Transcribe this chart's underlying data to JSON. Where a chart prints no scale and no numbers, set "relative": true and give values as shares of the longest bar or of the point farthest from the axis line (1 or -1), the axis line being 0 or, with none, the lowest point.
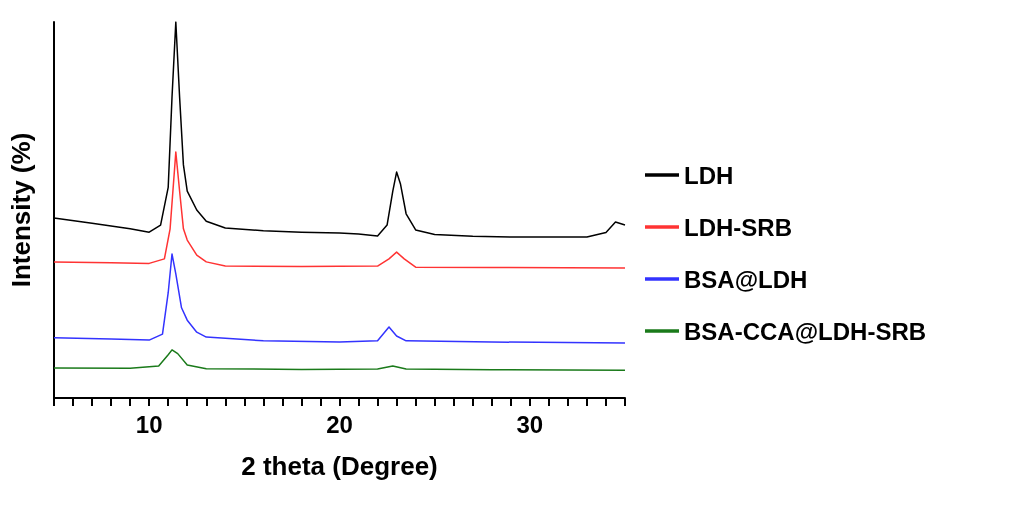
{
  "chart_data": {
    "type": "line",
    "relative": true,
    "xlabel": "2 theta (Degree)",
    "ylabel": "Intensity (%)",
    "xlim": [
      5,
      35
    ],
    "xticks": [
      {
        "value": 5,
        "label": null
      },
      {
        "value": 6,
        "label": null
      },
      {
        "value": 7,
        "label": null
      },
      {
        "value": 8,
        "label": null
      },
      {
        "value": 9,
        "label": null
      },
      10,
      {
        "value": 11,
        "label": null
      },
      {
        "value": 12,
        "label": null
      },
      {
        "value": 13,
        "label": null
      },
      {
        "value": 14,
        "label": null
      },
      {
        "value": 15,
        "label": null
      },
      {
        "value": 16,
        "label": null
      },
      {
        "value": 17,
        "label": null
      },
      {
        "value": 18,
        "label": null
      },
      {
        "value": 19,
        "label": null
      },
      20,
      {
        "value": 21,
        "label": null
      },
      {
        "value": 22,
        "label": null
      },
      {
        "value": 23,
        "label": null
      },
      {
        "value": 24,
        "label": null
      },
      {
        "value": 25,
        "label": null
      },
      {
        "value": 26,
        "label": null
      },
      {
        "value": 27,
        "label": null
      },
      {
        "value": 28,
        "label": null
      },
      {
        "value": 29,
        "label": null
      },
      30,
      {
        "value": 31,
        "label": null
      },
      {
        "value": 32,
        "label": null
      },
      {
        "value": 33,
        "label": null
      },
      {
        "value": 34,
        "label": null
      },
      {
        "value": 35,
        "label": null
      }
    ],
    "legend": "right",
    "grid": false,
    "marker": "none",
    "line_style": "solid",
    "series": [
      {
        "name": "LDH",
        "color": "#000000",
        "x": [
          5,
          7,
          9,
          10,
          10.6,
          11,
          11.2,
          11.4,
          11.6,
          11.8,
          12,
          12.5,
          13,
          14,
          16,
          18,
          20,
          21,
          22,
          22.5,
          22.8,
          23,
          23.2,
          23.5,
          24,
          25,
          27,
          29,
          31,
          33,
          34,
          34.5,
          35
        ],
        "values": [
          0.479,
          0.465,
          0.45,
          0.441,
          0.46,
          0.56,
          0.8,
          1.0,
          0.8,
          0.62,
          0.55,
          0.5,
          0.47,
          0.452,
          0.445,
          0.441,
          0.439,
          0.436,
          0.431,
          0.46,
          0.55,
          0.601,
          0.57,
          0.49,
          0.447,
          0.435,
          0.43,
          0.428,
          0.428,
          0.428,
          0.44,
          0.468,
          0.46
        ]
      },
      {
        "name": "LDH-SRB",
        "color": "#ff3333",
        "x": [
          5,
          8,
          10,
          10.8,
          11.1,
          11.4,
          11.6,
          11.8,
          12,
          12.5,
          13,
          14,
          18,
          22,
          22.6,
          23,
          23.4,
          24,
          28,
          35
        ],
        "values": [
          0.362,
          0.36,
          0.358,
          0.37,
          0.45,
          0.654,
          0.55,
          0.45,
          0.42,
          0.38,
          0.362,
          0.351,
          0.35,
          0.351,
          0.37,
          0.388,
          0.37,
          0.348,
          0.347,
          0.346
        ]
      },
      {
        "name": "BSA@LDH",
        "color": "#3333ff",
        "x": [
          5,
          8,
          10,
          10.7,
          11,
          11.2,
          11.4,
          11.7,
          12,
          12.5,
          13,
          16,
          20,
          22,
          22.6,
          23,
          23.5,
          28,
          35
        ],
        "values": [
          0.16,
          0.157,
          0.154,
          0.17,
          0.28,
          0.383,
          0.33,
          0.24,
          0.207,
          0.175,
          0.162,
          0.152,
          0.149,
          0.152,
          0.189,
          0.165,
          0.152,
          0.149,
          0.146
        ]
      },
      {
        "name": "BSA-CCA@LDH-SRB",
        "color": "#1a7a1a",
        "x": [
          5,
          9,
          10.5,
          11,
          11.2,
          11.5,
          12,
          13,
          18,
          22,
          22.8,
          23.5,
          28,
          35
        ],
        "values": [
          0.08,
          0.079,
          0.085,
          0.115,
          0.128,
          0.118,
          0.088,
          0.078,
          0.076,
          0.077,
          0.085,
          0.077,
          0.075,
          0.074
        ]
      }
    ]
  }
}
